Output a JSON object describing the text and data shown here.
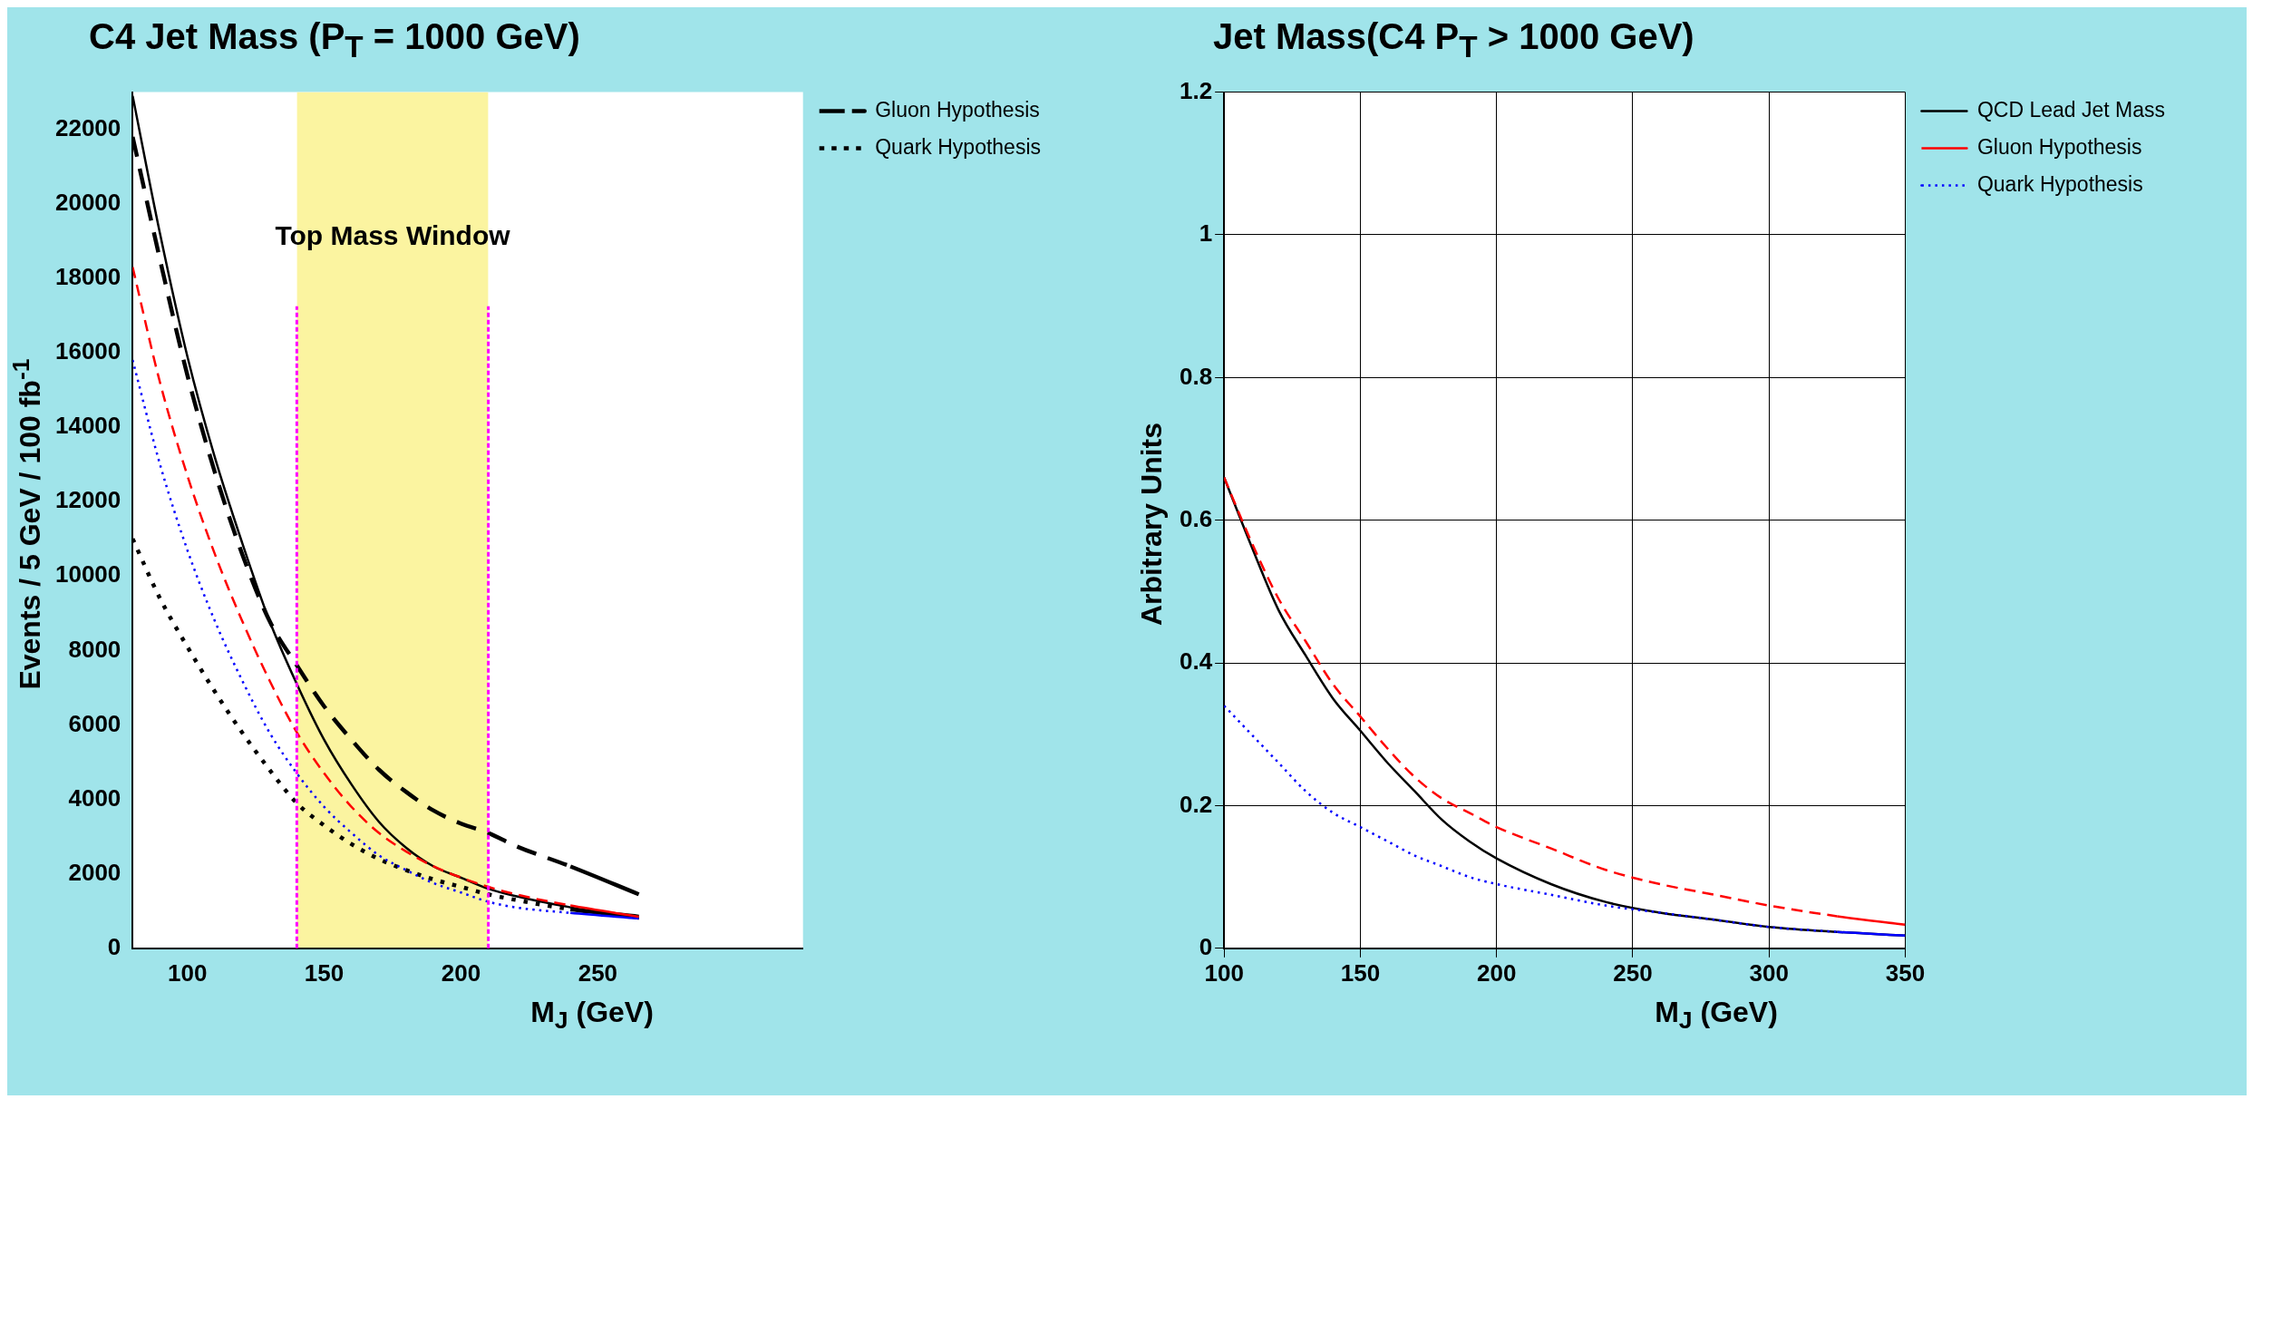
{
  "chart_data": [
    {
      "type": "line",
      "title": "C4 Jet Mass (P$_{T}$ = 1000 GeV)",
      "xlabel": "M$_{J}$ (GeV)",
      "ylabel": "Events / 5 GeV / 100 fb$^{-1}$",
      "xlim": [
        80,
        325
      ],
      "xticks": [
        100,
        150,
        200,
        250
      ],
      "ylim": [
        0,
        23000
      ],
      "yticks": [
        0,
        2000,
        4000,
        6000,
        8000,
        10000,
        12000,
        14000,
        16000,
        18000,
        20000,
        22000
      ],
      "grid": false,
      "legend": "top right",
      "marker": "none",
      "x": [
        80,
        90,
        100,
        110,
        120,
        130,
        140,
        150,
        160,
        170,
        180,
        190,
        200,
        210,
        220,
        240,
        265
      ],
      "series": [
        {
          "color": "#000000",
          "line_style": "solid",
          "values": [
            22900,
            19200,
            15900,
            13200,
            10900,
            8800,
            7100,
            5600,
            4400,
            3400,
            2700,
            2200,
            1900,
            1600,
            1400,
            1100,
            800
          ]
        },
        {
          "color": "#ff0000",
          "line_style": "dashed",
          "values": [
            18300,
            15200,
            12700,
            10600,
            8800,
            7200,
            5800,
            4700,
            3800,
            3100,
            2600,
            2200,
            1900,
            1650,
            1450,
            1150,
            850
          ]
        },
        {
          "color": "#0000ff",
          "line_style": "dotted",
          "values": [
            15800,
            13000,
            10700,
            8800,
            7200,
            5800,
            4700,
            3800,
            3100,
            2500,
            2100,
            1750,
            1500,
            1250,
            1100,
            950,
            800
          ]
        },
        {
          "name": "Gluon Hypothesis",
          "color": "#000000",
          "line_style": "dashed",
          "values": [
            21800,
            18500,
            15400,
            12800,
            10600,
            8800,
            7600,
            6500,
            5600,
            4800,
            4200,
            3700,
            3350,
            3100,
            2750,
            2200,
            1450
          ]
        },
        {
          "name": "Quark Hypothesis",
          "color": "#000000",
          "line_style": "dotted",
          "values": [
            11000,
            9400,
            8100,
            6900,
            5800,
            4800,
            3900,
            3300,
            2800,
            2400,
            2100,
            1850,
            1650,
            1450,
            1300,
            1050,
            850
          ]
        }
      ],
      "bands": [
        {
          "axis": "x",
          "from": 140,
          "to": 210,
          "label": "Top Mass Window",
          "color": "#fbf4a0"
        }
      ],
      "ref_lines": [
        {
          "axis": "x",
          "value": 140,
          "color": "#ff00ff",
          "line_style": "dashed"
        },
        {
          "axis": "x",
          "value": 210,
          "color": "#ff00ff",
          "line_style": "dashed"
        }
      ]
    },
    {
      "type": "line",
      "title": "Jet Mass(C4 P$_{T}$ > 1000 GeV)",
      "xlabel": "M$_{J}$ (GeV)",
      "ylabel": "Arbitrary Units",
      "xlim": [
        100,
        350
      ],
      "xticks": [
        100,
        150,
        200,
        250,
        300,
        350
      ],
      "ylim": [
        0,
        1.2
      ],
      "yticks": [
        0,
        0.2,
        0.4,
        0.6,
        0.8,
        1,
        1.2
      ],
      "grid": true,
      "legend": "top right",
      "marker": "none",
      "x": [
        100,
        110,
        120,
        130,
        140,
        150,
        160,
        170,
        180,
        190,
        200,
        220,
        240,
        260,
        280,
        300,
        325,
        350
      ],
      "series": [
        {
          "name": "QCD Lead Jet Mass",
          "color": "#000000",
          "line_style": "solid",
          "values": [
            0.66,
            0.564,
            0.474,
            0.41,
            0.35,
            0.305,
            0.26,
            0.22,
            0.18,
            0.15,
            0.126,
            0.09,
            0.065,
            0.05,
            0.04,
            0.03,
            0.023,
            0.018
          ]
        },
        {
          "name": "Gluon Hypothesis",
          "color": "#ff0000",
          "line_style": "dashed",
          "values": [
            0.66,
            0.57,
            0.49,
            0.43,
            0.37,
            0.325,
            0.28,
            0.24,
            0.21,
            0.19,
            0.17,
            0.14,
            0.11,
            0.09,
            0.075,
            0.06,
            0.045,
            0.033
          ]
        },
        {
          "name": "Quark Hypothesis",
          "color": "#0000ff",
          "line_style": "dotted",
          "values": [
            0.34,
            0.3,
            0.26,
            0.22,
            0.19,
            0.17,
            0.15,
            0.13,
            0.115,
            0.1,
            0.09,
            0.075,
            0.06,
            0.05,
            0.04,
            0.03,
            0.023,
            0.018
          ]
        }
      ]
    }
  ]
}
